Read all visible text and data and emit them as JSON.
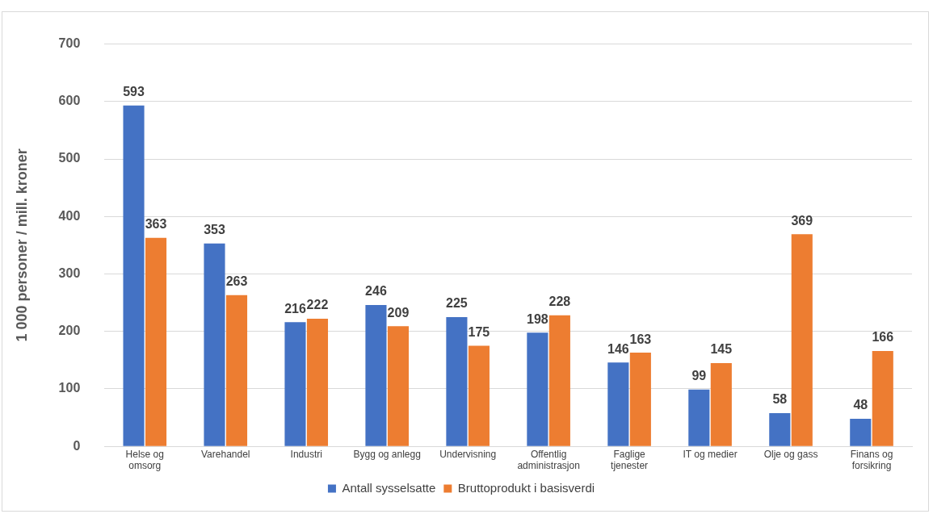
{
  "chart_data": {
    "type": "bar",
    "ylabel": "1 000 personer / mill. kroner",
    "categories": [
      "Helse og omsorg",
      "Varehandel",
      "Industri",
      "Bygg og anlegg",
      "Undervisning",
      "Offentlig administrasjon",
      "Faglige tjenester",
      "IT og medier",
      "Olje og gass",
      "Finans og forsikring"
    ],
    "series": [
      {
        "name": "Antall sysselsatte",
        "color": "#4472c4",
        "values": [
          593,
          353,
          216,
          246,
          225,
          198,
          146,
          99,
          58,
          48
        ]
      },
      {
        "name": "Bruttoprodukt i basisverdi",
        "color": "#ed7d31",
        "values": [
          363,
          263,
          222,
          209,
          175,
          228,
          163,
          145,
          369,
          166
        ]
      }
    ],
    "ylim": [
      0,
      700
    ],
    "yticks": [
      0,
      100,
      200,
      300,
      400,
      500,
      600,
      700
    ],
    "grid": "y",
    "legend": "bottom",
    "data_labels": true
  }
}
